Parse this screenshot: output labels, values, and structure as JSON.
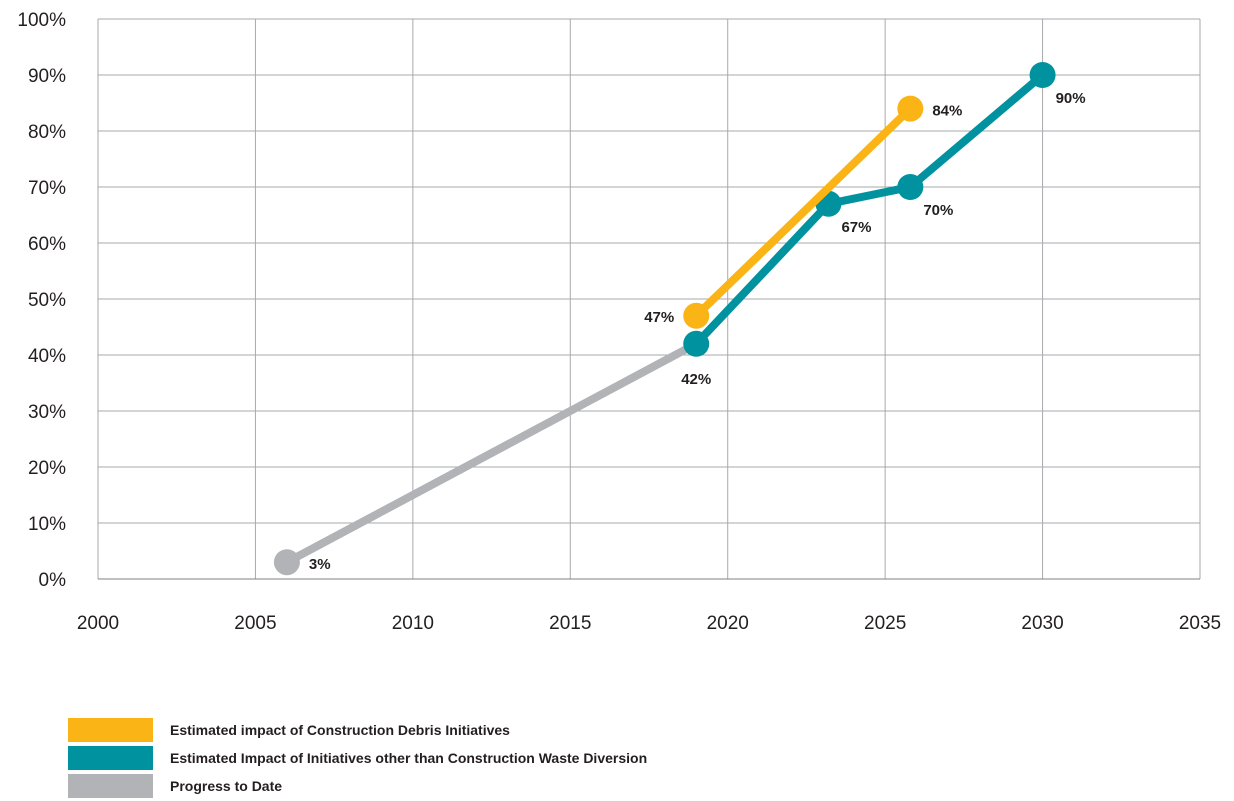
{
  "chart_data": {
    "type": "line",
    "xlabel": "",
    "ylabel": "",
    "xlim": [
      2000,
      2035
    ],
    "ylim": [
      0,
      100
    ],
    "x_ticks": [
      "2000",
      "2005",
      "2010",
      "2015",
      "2020",
      "2025",
      "2030",
      "2035"
    ],
    "y_ticks": [
      "0%",
      "10%",
      "20%",
      "30%",
      "40%",
      "50%",
      "60%",
      "70%",
      "80%",
      "90%",
      "100%"
    ],
    "grid": true,
    "legend_position": "bottom-left",
    "series": [
      {
        "name": "Estimated impact of Construction Debris Initiatives",
        "color": "#fbb416",
        "points": [
          {
            "x": 2019,
            "y": 47,
            "label": "47%",
            "label_side": "left"
          },
          {
            "x": 2025.8,
            "y": 84,
            "label": "84%",
            "label_side": "right"
          }
        ]
      },
      {
        "name": "Estimated Impact of Initiatives other than Construction Waste Diversion",
        "color": "#00929f",
        "points": [
          {
            "x": 2019,
            "y": 42,
            "label": "42%",
            "label_side": "below"
          },
          {
            "x": 2023.2,
            "y": 67,
            "label": "67%",
            "label_side": "below-right"
          },
          {
            "x": 2025.8,
            "y": 70,
            "label": "70%",
            "label_side": "below-right"
          },
          {
            "x": 2030,
            "y": 90,
            "label": "90%",
            "label_side": "below-right"
          }
        ]
      },
      {
        "name": "Progress to Date",
        "color": "#b1b3b6",
        "points": [
          {
            "x": 2006,
            "y": 3,
            "label": "3%",
            "label_side": "right"
          },
          {
            "x": 2019,
            "y": 42,
            "label": "",
            "label_side": "none"
          }
        ]
      }
    ]
  },
  "legend": [
    {
      "label": "Estimated impact of Construction Debris Initiatives",
      "color": "#fbb416"
    },
    {
      "label": "Estimated Impact of Initiatives other than Construction Waste Diversion",
      "color": "#00929f"
    },
    {
      "label": "Progress to Date",
      "color": "#b1b3b6"
    }
  ]
}
